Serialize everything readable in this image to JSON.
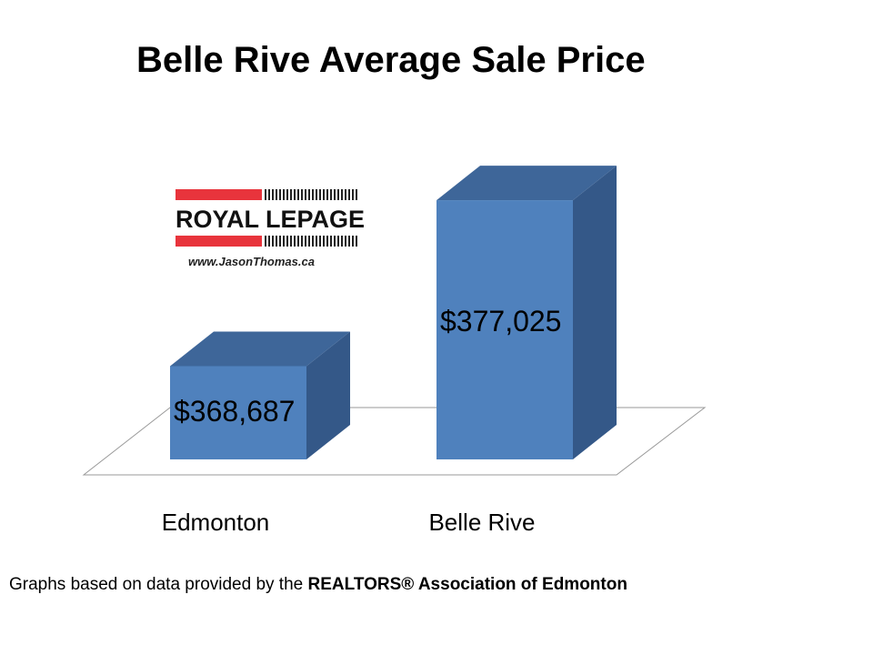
{
  "chart_data": {
    "type": "bar",
    "title": "Belle Rive Average Sale Price",
    "categories": [
      "Edmonton",
      "Belle Rive"
    ],
    "values": [
      368687,
      377025
    ],
    "value_labels": [
      "$368,687",
      "$377,025"
    ],
    "style": "3d-column",
    "bar_color": "#4f81bd",
    "bar_side_color": "#345888",
    "bar_top_color": "#3e6699",
    "grid": false,
    "legend": "none"
  },
  "logo": {
    "brand": "ROYAL LEPAGE",
    "url": "www.JasonThomas.ca",
    "brand_red": "#e8343c"
  },
  "footer": {
    "prefix": "Graphs based on data provided by the ",
    "org": "REALTORS® Association of Edmonton"
  }
}
